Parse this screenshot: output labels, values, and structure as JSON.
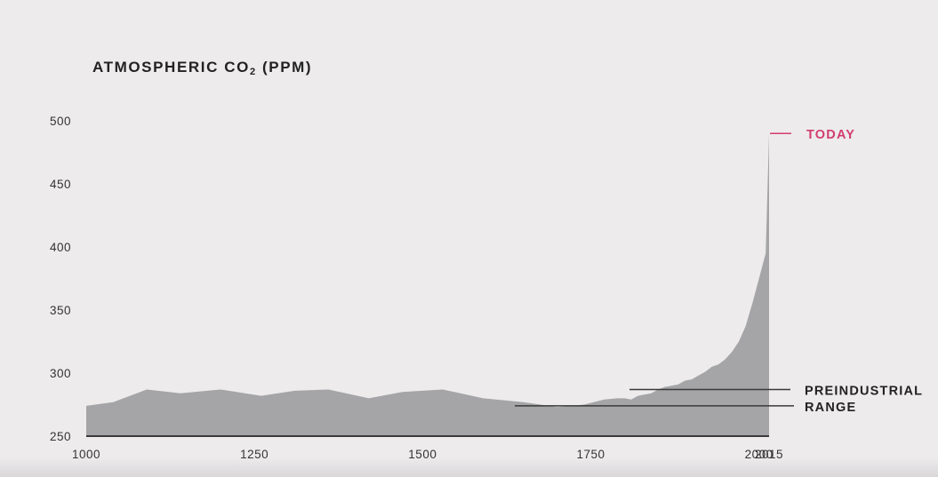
{
  "chart_data": {
    "type": "area",
    "title": "ATMOSPHERIC CO",
    "title_subscript": "2",
    "title_suffix": " (PPM)",
    "xlabel": "",
    "ylabel": "",
    "xlim": [
      1000,
      2015
    ],
    "ylim": [
      250,
      500
    ],
    "y_ticks": [
      250,
      300,
      350,
      400,
      450,
      500
    ],
    "x_ticks": [
      1000,
      1250,
      1500,
      1750,
      2000,
      2015
    ],
    "grid": false,
    "series": [
      {
        "x": [
          1000,
          1040,
          1090,
          1140,
          1200,
          1260,
          1310,
          1360,
          1420,
          1470,
          1530,
          1590,
          1650,
          1700,
          1740,
          1770,
          1790,
          1800,
          1810,
          1820,
          1830,
          1840,
          1850,
          1860,
          1870,
          1880,
          1890,
          1900,
          1910,
          1920,
          1930,
          1940,
          1950,
          1960,
          1970,
          1980,
          1990,
          2000,
          2010,
          2015
        ],
        "values": [
          274,
          277,
          287,
          284,
          287,
          282,
          286,
          287,
          280,
          285,
          287,
          280,
          277,
          273,
          275,
          279,
          280,
          280,
          279,
          282,
          283,
          284,
          287,
          289,
          290,
          291,
          294,
          295,
          298,
          301,
          305,
          307,
          311,
          317,
          325,
          337,
          355,
          375,
          395,
          490
        ]
      }
    ],
    "color": "#a5a5a7",
    "annotations": [
      {
        "label": "TODAY",
        "value": 490,
        "color": "#d23d6e"
      },
      {
        "label": "PREINDUSTRIAL",
        "value": 287
      },
      {
        "label": "RANGE",
        "value": 274
      }
    ]
  }
}
